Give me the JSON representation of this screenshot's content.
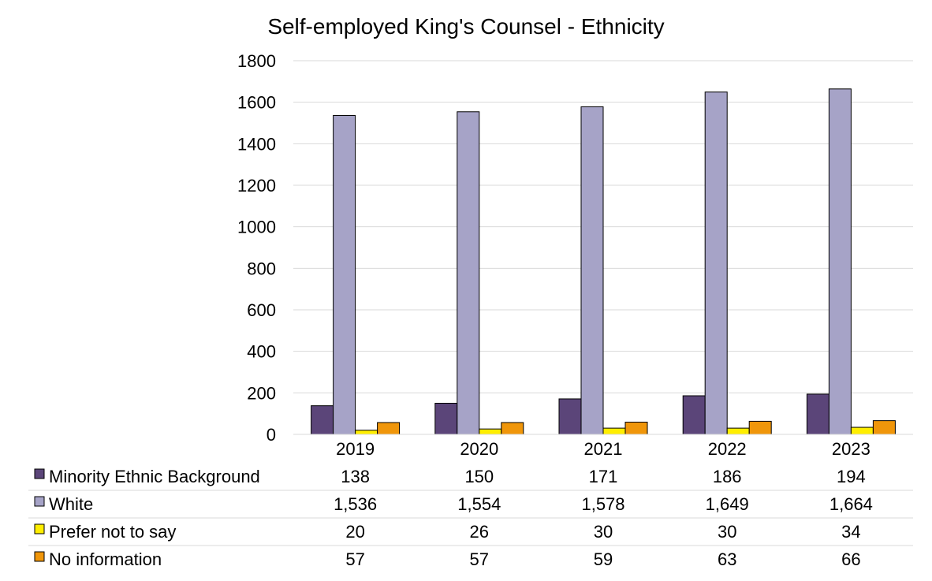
{
  "chart_data": {
    "type": "bar",
    "title": "Self-employed King's Counsel - Ethnicity",
    "xlabel": "",
    "ylabel": "",
    "categories": [
      "2019",
      "2020",
      "2021",
      "2022",
      "2023"
    ],
    "ylim": [
      0,
      1800
    ],
    "yticks": [
      "0",
      "200",
      "400",
      "600",
      "800",
      "1000",
      "1200",
      "1400",
      "1600",
      "1800"
    ],
    "grid": true,
    "legend": "data-table-left",
    "series": [
      {
        "name": "Minority Ethnic Background",
        "color": "#5b4579",
        "values": [
          138,
          150,
          171,
          186,
          194
        ],
        "labels": [
          "138",
          "150",
          "171",
          "186",
          "194"
        ]
      },
      {
        "name": "White",
        "color": "#a6a3c7",
        "values": [
          1536,
          1554,
          1578,
          1649,
          1664
        ],
        "labels": [
          "1,536",
          "1,554",
          "1,578",
          "1,649",
          "1,664"
        ]
      },
      {
        "name": "Prefer not to say",
        "color": "#ffee00",
        "values": [
          20,
          26,
          30,
          30,
          34
        ],
        "labels": [
          "20",
          "26",
          "30",
          "30",
          "34"
        ]
      },
      {
        "name": "No information",
        "color": "#f0960a",
        "values": [
          57,
          57,
          59,
          63,
          66
        ],
        "labels": [
          "57",
          "57",
          "59",
          "63",
          "66"
        ]
      }
    ]
  }
}
